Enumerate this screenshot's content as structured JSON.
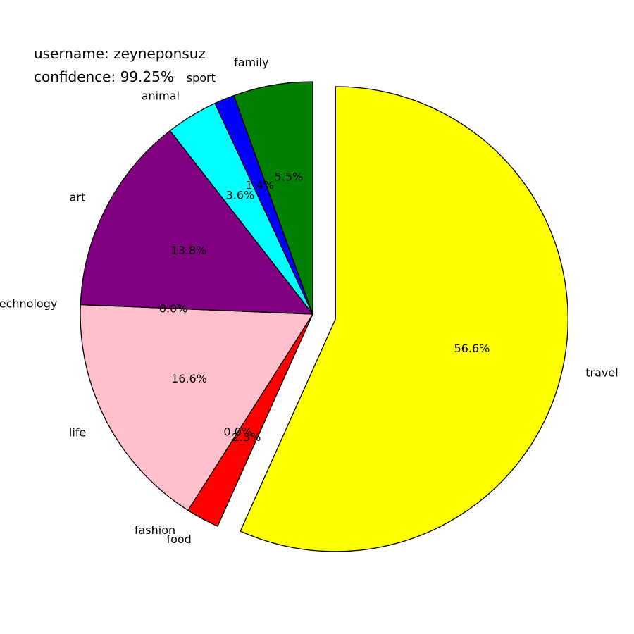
{
  "info": {
    "username": "username: zeyneponsuz",
    "confidence": "confidence: 99.25%"
  },
  "chart_data": {
    "type": "pie",
    "title": "",
    "start_angle_deg": 90,
    "direction": "clockwise",
    "exploded": [
      "travel"
    ],
    "slices": [
      {
        "label": "travel",
        "value": 56.6,
        "pct_label": "56.6%",
        "color": "#ffff00"
      },
      {
        "label": "food",
        "value": 2.3,
        "pct_label": "2.3%",
        "color": "#ff0000"
      },
      {
        "label": "fashion",
        "value": 0.0,
        "pct_label": "0.0%",
        "color": "#ffa500"
      },
      {
        "label": "life",
        "value": 16.6,
        "pct_label": "16.6%",
        "color": "#ffc0cb"
      },
      {
        "label": "technology",
        "value": 0.0,
        "pct_label": "0.0%",
        "color": "#808080"
      },
      {
        "label": "art",
        "value": 13.8,
        "pct_label": "13.8%",
        "color": "#800080"
      },
      {
        "label": "animal",
        "value": 3.6,
        "pct_label": "3.6%",
        "color": "#00ffff"
      },
      {
        "label": "sport",
        "value": 1.4,
        "pct_label": "1.4%",
        "color": "#0000ff"
      },
      {
        "label": "family",
        "value": 5.5,
        "pct_label": "5.5%",
        "color": "#008000"
      }
    ]
  }
}
